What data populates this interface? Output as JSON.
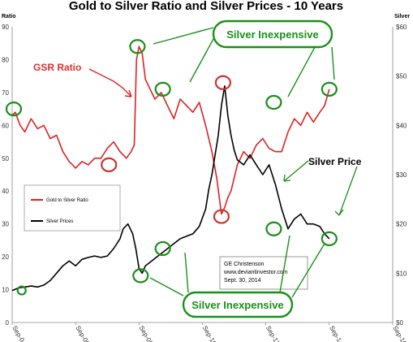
{
  "chart_data": {
    "type": "line",
    "title": "Gold to Silver Ratio and Silver Prices - 10 Years",
    "ylabel": "Ratio",
    "y2label": "Silver",
    "ylim": [
      0,
      90
    ],
    "y2lim": [
      0,
      60
    ],
    "yticks": [
      "0",
      "10",
      "20",
      "30",
      "40",
      "50",
      "60",
      "70",
      "80",
      "90"
    ],
    "y2ticks": [
      "$0",
      "$10",
      "$20",
      "$30",
      "$40",
      "$50",
      "$60"
    ],
    "xticks": [
      "Sep-04",
      "Sep-06",
      "Sep-08",
      "Sep-10",
      "Sep-12",
      "Sep-14",
      "Sep-16"
    ],
    "xlim": [
      2004.7,
      2016.7
    ],
    "grid": false,
    "legend_position": "left",
    "series": [
      {
        "name": "Gold to Silver Ratio",
        "axis": "left",
        "color": "#dd2222",
        "x": [
          2004.7,
          2004.8,
          2004.95,
          2005.1,
          2005.3,
          2005.5,
          2005.7,
          2005.9,
          2006.1,
          2006.3,
          2006.5,
          2006.7,
          2006.9,
          2007.1,
          2007.3,
          2007.5,
          2007.7,
          2007.9,
          2008.1,
          2008.3,
          2008.45,
          2008.55,
          2008.62,
          2008.7,
          2008.8,
          2008.9,
          2009.0,
          2009.2,
          2009.4,
          2009.6,
          2009.8,
          2010.0,
          2010.2,
          2010.4,
          2010.6,
          2010.8,
          2011.0,
          2011.15,
          2011.3,
          2011.4,
          2011.5,
          2011.6,
          2011.8,
          2012.0,
          2012.2,
          2012.4,
          2012.6,
          2012.8,
          2013.0,
          2013.2,
          2013.4,
          2013.6,
          2013.8,
          2014.0,
          2014.2,
          2014.4,
          2014.55,
          2014.7
        ],
        "values": [
          63,
          64,
          60,
          58,
          62,
          59,
          60,
          56,
          57,
          52,
          49,
          47,
          49,
          48,
          50,
          50,
          53,
          55,
          52,
          50,
          52,
          54,
          80,
          84,
          82,
          74,
          72,
          68,
          70,
          66,
          62,
          68,
          66,
          64,
          67,
          60,
          52,
          44,
          33,
          35,
          38,
          40,
          48,
          52,
          50,
          54,
          56,
          53,
          52,
          52,
          58,
          62,
          60,
          64,
          61,
          64,
          66,
          71
        ]
      },
      {
        "name": "Silver Prices",
        "axis": "right",
        "color": "#000000",
        "x": [
          2004.7,
          2004.9,
          2005.1,
          2005.3,
          2005.5,
          2005.7,
          2005.9,
          2006.1,
          2006.3,
          2006.5,
          2006.7,
          2006.9,
          2007.1,
          2007.3,
          2007.5,
          2007.7,
          2007.9,
          2008.1,
          2008.2,
          2008.35,
          2008.5,
          2008.6,
          2008.7,
          2008.8,
          2008.9,
          2009.0,
          2009.2,
          2009.4,
          2009.6,
          2009.8,
          2010.0,
          2010.2,
          2010.4,
          2010.6,
          2010.8,
          2010.9,
          2011.0,
          2011.2,
          2011.3,
          2011.4,
          2011.5,
          2011.6,
          2011.7,
          2011.8,
          2012.0,
          2012.2,
          2012.4,
          2012.6,
          2012.8,
          2013.0,
          2013.2,
          2013.4,
          2013.6,
          2013.8,
          2014.0,
          2014.2,
          2014.4,
          2014.55,
          2014.7
        ],
        "values": [
          6.5,
          7,
          7.2,
          7.4,
          7.2,
          7.6,
          8.5,
          10,
          11.5,
          12.5,
          11.5,
          12.8,
          13.2,
          13.5,
          13.2,
          13.5,
          15,
          17,
          19,
          20,
          18,
          15,
          11,
          10,
          11.5,
          12,
          13,
          14,
          15,
          16,
          17,
          17.5,
          18,
          19.5,
          23,
          27,
          30,
          38,
          44,
          48,
          42,
          38,
          35,
          33,
          32,
          34,
          32,
          30,
          32,
          28,
          23,
          19,
          21,
          22,
          20,
          20,
          19.5,
          18,
          17
        ]
      }
    ],
    "annotations": {
      "gsr_label": "GSR Ratio",
      "silver_price_label": "Silver Price",
      "inexpensive_top": "Silver Inexpensive",
      "inexpensive_bottom": "Silver Inexpensive"
    },
    "note": [
      "GE Christenson",
      "www.deviantinvestor.com",
      "Sept. 30, 2014"
    ]
  }
}
